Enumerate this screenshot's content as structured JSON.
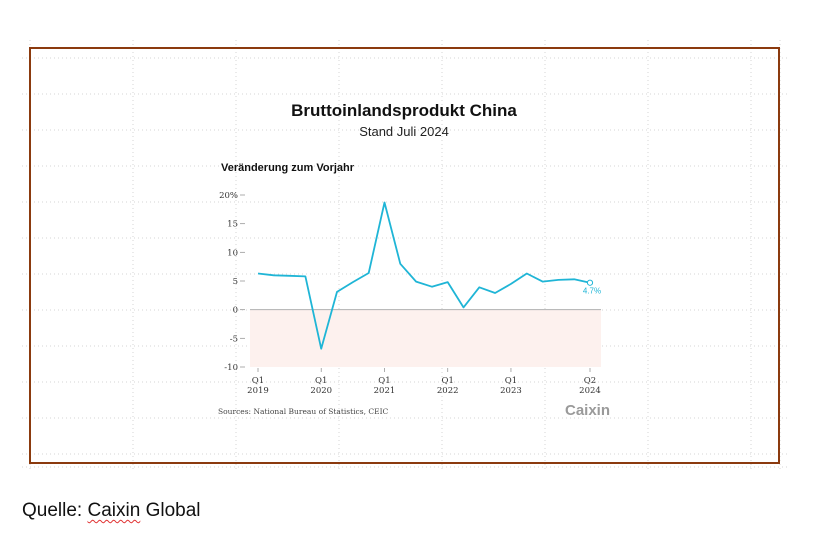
{
  "caption": {
    "prefix": "Quelle: ",
    "source_name": "Caixin",
    "suffix": " Global"
  },
  "chart_data": {
    "type": "line",
    "title": "Bruttoinlandsprodukt China",
    "subtitle": "Stand Juli 2024",
    "ylabel": "Veränderung zum Vorjahr",
    "xlabel": "",
    "ylim": [
      -10,
      20
    ],
    "yticks": [
      {
        "value": 20,
        "label": "20%"
      },
      {
        "value": 15,
        "label": "15"
      },
      {
        "value": 10,
        "label": "10"
      },
      {
        "value": 5,
        "label": "5"
      },
      {
        "value": 0,
        "label": "0"
      },
      {
        "value": -5,
        "label": "-5"
      },
      {
        "value": -10,
        "label": "-10"
      }
    ],
    "xticks": [
      {
        "index": 0,
        "quarter": "Q1",
        "year": "2019"
      },
      {
        "index": 4,
        "quarter": "Q1",
        "year": "2020"
      },
      {
        "index": 8,
        "quarter": "Q1",
        "year": "2021"
      },
      {
        "index": 12,
        "quarter": "Q1",
        "year": "2022"
      },
      {
        "index": 16,
        "quarter": "Q1",
        "year": "2023"
      },
      {
        "index": 21,
        "quarter": "Q2",
        "year": "2024"
      }
    ],
    "negative_region_shaded": true,
    "grid": false,
    "series": [
      {
        "color": "#1fb5d6",
        "x": [
          "Q1 2019",
          "Q2 2019",
          "Q3 2019",
          "Q4 2019",
          "Q1 2020",
          "Q2 2020",
          "Q3 2020",
          "Q4 2020",
          "Q1 2021",
          "Q2 2021",
          "Q3 2021",
          "Q4 2021",
          "Q1 2022",
          "Q2 2022",
          "Q3 2022",
          "Q4 2022",
          "Q1 2023",
          "Q2 2023",
          "Q3 2023",
          "Q4 2023",
          "Q1 2024",
          "Q2 2024"
        ],
        "values": [
          6.3,
          6.0,
          5.9,
          5.8,
          -6.8,
          3.1,
          4.8,
          6.4,
          18.7,
          8.0,
          4.9,
          4.0,
          4.8,
          0.4,
          3.9,
          2.9,
          4.5,
          6.3,
          4.9,
          5.2,
          5.3,
          4.7
        ]
      }
    ],
    "last_value_label": "4.7%",
    "source": "Sources: National Bureau of Statistics, CEIC",
    "logo_text": "Caixin"
  }
}
